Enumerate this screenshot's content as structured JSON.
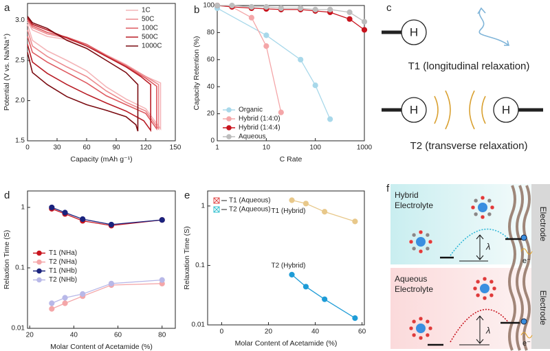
{
  "chart_data": [
    {
      "type": "line",
      "panel": "a",
      "xlabel": "Capacity (mAh g⁻¹)",
      "ylabel": "Potential (V vs. Na/Na⁺)",
      "xlim": [
        0,
        150
      ],
      "ylim": [
        1.5,
        3.21
      ],
      "xticks": [
        0,
        30,
        60,
        90,
        120,
        150
      ],
      "yticks": [
        1.5,
        {
          "value": 2,
          "label": "2.0"
        },
        2.5,
        {
          "value": 3,
          "label": "3.0"
        }
      ],
      "legend": "top-right",
      "markers": false,
      "series": [
        {
          "name": "1C",
          "color": "#f4b5b8",
          "x": [
            0,
            5,
            20,
            40,
            60,
            80,
            100,
            120,
            135,
            135,
            120,
            100,
            80,
            60,
            40,
            20,
            5,
            0
          ],
          "values": [
            2.95,
            2.75,
            2.62,
            2.5,
            2.37,
            2.17,
            2.02,
            1.9,
            1.65,
            2.22,
            2.3,
            2.45,
            2.57,
            2.7,
            2.76,
            2.8,
            2.88,
            2.98
          ]
        },
        {
          "name": "50C",
          "color": "#ec8a8e",
          "x": [
            0,
            5,
            20,
            40,
            60,
            80,
            100,
            120,
            133,
            133,
            120,
            100,
            80,
            60,
            40,
            20,
            5,
            0
          ],
          "values": [
            2.88,
            2.68,
            2.55,
            2.42,
            2.3,
            2.12,
            1.98,
            1.87,
            1.65,
            2.2,
            2.3,
            2.44,
            2.56,
            2.7,
            2.78,
            2.83,
            2.91,
            3.0
          ]
        },
        {
          "name": "100C",
          "color": "#de5a60",
          "x": [
            0,
            5,
            20,
            40,
            60,
            80,
            100,
            120,
            131,
            131,
            120,
            100,
            80,
            60,
            40,
            20,
            5,
            0
          ],
          "values": [
            2.8,
            2.6,
            2.48,
            2.35,
            2.22,
            2.06,
            1.95,
            1.84,
            1.65,
            2.18,
            2.28,
            2.43,
            2.56,
            2.7,
            2.79,
            2.85,
            2.93,
            3.01
          ]
        },
        {
          "name": "500C",
          "color": "#b81c25",
          "x": [
            0,
            5,
            20,
            40,
            60,
            80,
            100,
            118,
            125,
            125,
            115,
            100,
            80,
            60,
            40,
            20,
            5,
            0
          ],
          "values": [
            2.7,
            2.48,
            2.34,
            2.2,
            2.08,
            1.97,
            1.87,
            1.75,
            1.63,
            2.2,
            2.3,
            2.42,
            2.55,
            2.68,
            2.78,
            2.88,
            2.95,
            3.03
          ]
        },
        {
          "name": "1000C",
          "color": "#7a0a10",
          "x": [
            0,
            5,
            20,
            40,
            60,
            80,
            100,
            110,
            112,
            112,
            100,
            80,
            60,
            40,
            20,
            5,
            0
          ],
          "values": [
            2.6,
            2.35,
            2.2,
            2.05,
            1.95,
            1.88,
            1.8,
            1.7,
            1.62,
            2.2,
            2.35,
            2.5,
            2.65,
            2.75,
            2.9,
            2.97,
            3.05
          ]
        }
      ]
    },
    {
      "type": "line",
      "panel": "b",
      "xlabel": "C Rate",
      "ylabel": "Capacity Retention (%)",
      "xscale": "log",
      "xlim": [
        1,
        1000
      ],
      "ylim": [
        0,
        100
      ],
      "xticks": [
        1,
        10,
        100,
        1000
      ],
      "yticks": [
        0,
        20,
        40,
        60,
        80,
        100
      ],
      "legend": "bottom-left",
      "markers": true,
      "series": [
        {
          "name": "Organic",
          "color": "#a8d8ea",
          "x": [
            1,
            10,
            50,
            100,
            200
          ],
          "values": [
            98,
            78,
            60,
            41,
            16
          ]
        },
        {
          "name": "Hybrid (1:4:0)",
          "color": "#f4a6a8",
          "x": [
            1,
            2,
            5,
            10,
            20
          ],
          "values": [
            100,
            99,
            91,
            70,
            21
          ]
        },
        {
          "name": "Hybrid (1:4:4)",
          "color": "#c8141e",
          "x": [
            1,
            2,
            5,
            10,
            20,
            50,
            100,
            200,
            500,
            1000
          ],
          "values": [
            100,
            99,
            98,
            97.5,
            97,
            97,
            96,
            95,
            90,
            82
          ]
        },
        {
          "name": "Aqueous",
          "color": "#bdbdbd",
          "x": [
            1,
            2,
            5,
            10,
            20,
            50,
            100,
            200,
            500,
            1000
          ],
          "values": [
            100,
            100,
            99,
            99,
            98,
            98,
            97,
            97,
            95,
            88
          ]
        }
      ]
    },
    {
      "type": "line",
      "panel": "d",
      "xlabel": "Molar Content of Acetamide (%)",
      "ylabel": "Relaxtion Time (S)",
      "yscale": "log",
      "xlim": [
        19,
        86
      ],
      "ylim": [
        0.01,
        1.87
      ],
      "xticks": [
        20,
        40,
        60,
        80
      ],
      "yticks": [
        0.01,
        0.1,
        1
      ],
      "legend": "center-left",
      "markers": true,
      "x": [
        30,
        36,
        44,
        57,
        80
      ],
      "series": [
        {
          "name": "T1 (NHa)",
          "color": "#c8141e",
          "values": [
            0.95,
            0.78,
            0.6,
            0.5,
            0.62
          ]
        },
        {
          "name": "T2 (NHa)",
          "color": "#f4a6a8",
          "values": [
            0.021,
            0.026,
            0.034,
            0.052,
            0.055
          ]
        },
        {
          "name": "T1 (NHb)",
          "color": "#1a237e",
          "values": [
            1.0,
            0.82,
            0.64,
            0.52,
            0.62
          ]
        },
        {
          "name": "T2 (NHb)",
          "color": "#b8b8e8",
          "values": [
            0.026,
            0.032,
            0.037,
            0.055,
            0.063
          ]
        }
      ]
    },
    {
      "type": "line",
      "panel": "e",
      "xlabel": "Molar Content of Acetamide (%)",
      "ylabel": "Relaxation Time (S)",
      "yscale": "log",
      "xlim": [
        -6,
        61
      ],
      "ylim": [
        0.01,
        1.79
      ],
      "xticks": [
        0,
        20,
        40,
        60
      ],
      "yticks": [
        0.01,
        0.1,
        1
      ],
      "legend": "top-left",
      "markers": true,
      "series_labels": true,
      "x": [
        30,
        36,
        44,
        57
      ],
      "legend_items": [
        {
          "name": "T1 (Aqueous)",
          "color": "#e04848",
          "marker": "crossbox"
        },
        {
          "name": "T2 (Aqueous)",
          "color": "#30c0d0",
          "marker": "crossbox"
        }
      ],
      "series": [
        {
          "name": "T1 (Hybrid)",
          "color": "#e8c88a",
          "values": [
            1.25,
            1.1,
            0.8,
            0.55
          ]
        },
        {
          "name": "T2 (Hybrid)",
          "color": "#1e9cd7",
          "values": [
            0.07,
            0.044,
            0.027,
            0.013
          ]
        }
      ]
    }
  ],
  "diagrams": {
    "c": {
      "panel": "c",
      "atom": "H",
      "t1": "T1 (longitudinal relaxation)",
      "t2": "T2 (transverse relaxation)"
    },
    "f": {
      "panel": "f",
      "hybrid": [
        "Hybrid",
        "Electrolyte"
      ],
      "aqueous": [
        "Aqueous",
        "Electrolyte"
      ],
      "electrode": "Electrode",
      "barrier": "λ",
      "electron": "e⁻"
    }
  }
}
